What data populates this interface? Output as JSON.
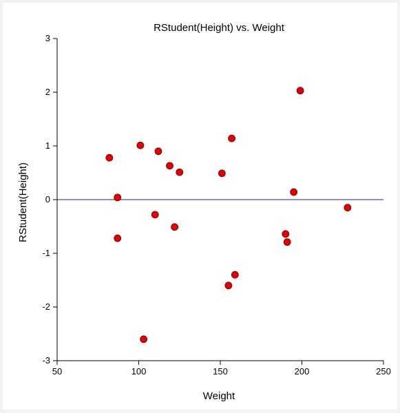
{
  "chart_data": {
    "type": "scatter",
    "title": "RStudent(Height) vs. Weight",
    "xlabel": "Weight",
    "ylabel": "RStudent(Height)",
    "xlim": [
      50,
      250
    ],
    "ylim": [
      -3,
      3
    ],
    "x_ticks": [
      50,
      100,
      150,
      200,
      250
    ],
    "y_ticks": [
      -3,
      -2,
      -1,
      0,
      1,
      2,
      3
    ],
    "x_tick_labels": [
      "50",
      "100",
      "150",
      "200",
      "250"
    ],
    "y_tick_labels": [
      "-3",
      "-2",
      "-1",
      "0",
      "1",
      "2",
      "3"
    ],
    "reference_line_y": 0,
    "grid": false,
    "colors": {
      "points": "#e00000",
      "point_edge": "#7a0000",
      "reference_line": "#1f1f8f",
      "axes": "#000000"
    },
    "points": [
      {
        "x": 82,
        "y": 0.78
      },
      {
        "x": 87,
        "y": 0.04
      },
      {
        "x": 87,
        "y": -0.72
      },
      {
        "x": 101,
        "y": 1.01
      },
      {
        "x": 103,
        "y": -2.6
      },
      {
        "x": 110,
        "y": -0.28
      },
      {
        "x": 112,
        "y": 0.9
      },
      {
        "x": 119,
        "y": 0.63
      },
      {
        "x": 122,
        "y": -0.51
      },
      {
        "x": 125,
        "y": 0.51
      },
      {
        "x": 151,
        "y": 0.49
      },
      {
        "x": 155,
        "y": -1.6
      },
      {
        "x": 157,
        "y": 1.14
      },
      {
        "x": 159,
        "y": -1.4
      },
      {
        "x": 190,
        "y": -0.64
      },
      {
        "x": 191,
        "y": -0.79
      },
      {
        "x": 195,
        "y": 0.14
      },
      {
        "x": 199,
        "y": 2.03
      },
      {
        "x": 228,
        "y": -0.15
      }
    ]
  }
}
